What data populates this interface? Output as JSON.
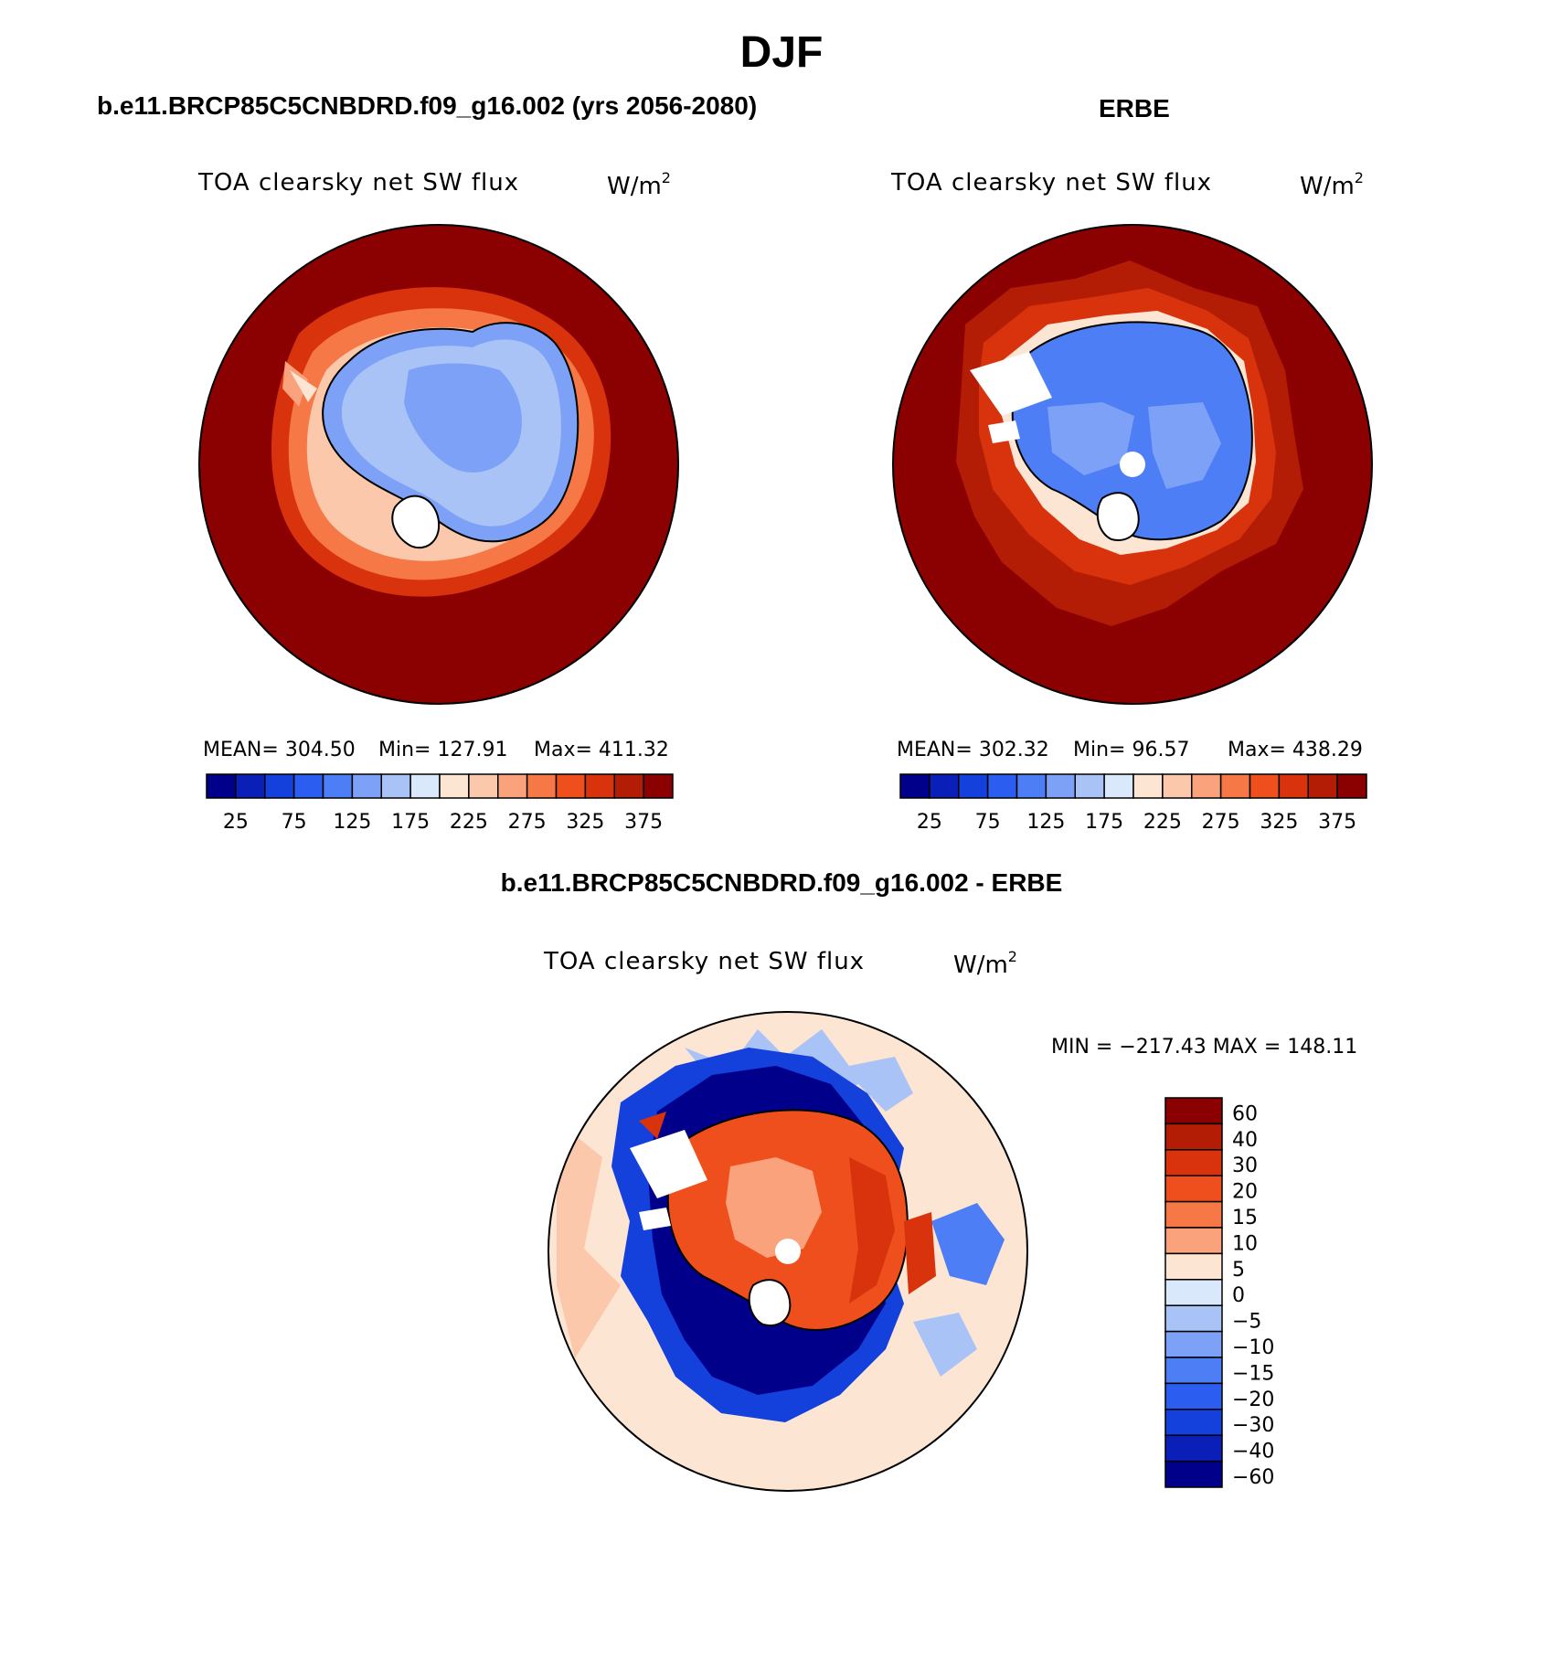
{
  "figure": {
    "title": "DJF",
    "left_title": "b.e11.BRCP85C5CNBDRD.f09_g16.002 (yrs 2056-2080)",
    "right_title": "ERBE",
    "diff_title": "b.e11.BRCP85C5CNBDRD.f09_g16.002 - ERBE"
  },
  "panels": {
    "left": {
      "var_label": "TOA clearsky net SW flux",
      "units_base": "W/m",
      "units_exp": "2",
      "mean": "MEAN= 304.50",
      "min": "Min= 127.91",
      "max": "Max= 411.32"
    },
    "right": {
      "var_label": "TOA clearsky net SW flux",
      "units_base": "W/m",
      "units_exp": "2",
      "mean": "MEAN= 302.32",
      "min": "Min=  96.57",
      "max": "Max= 438.29"
    },
    "diff": {
      "var_label": "TOA clearsky net SW flux",
      "units_base": "W/m",
      "units_exp": "2",
      "minmax": "MIN = −217.43 MAX = 148.11"
    }
  },
  "colorbars": {
    "abs": {
      "colors": [
        "#00008b",
        "#0a1fb8",
        "#1440dc",
        "#2b5ef0",
        "#4d7ef5",
        "#7ca1f7",
        "#a9c3f7",
        "#d9e8fa",
        "#fde5d4",
        "#fcc8ab",
        "#f9a27c",
        "#f57846",
        "#ee4f1c",
        "#d8330c",
        "#b41d05",
        "#8b0000"
      ],
      "tick_labels": [
        "25",
        "75",
        "125",
        "175",
        "225",
        "275",
        "325",
        "375"
      ]
    },
    "diff": {
      "colors": [
        "#8b0000",
        "#b41d05",
        "#d8330c",
        "#ee4f1c",
        "#f57846",
        "#f9a27c",
        "#fde5d4",
        "#d9e8fa",
        "#a9c3f7",
        "#7ca1f7",
        "#4d7ef5",
        "#2b5ef0",
        "#1440dc",
        "#0a1fb8",
        "#00008b"
      ],
      "tick_labels": [
        "60",
        "40",
        "30",
        "20",
        "15",
        "10",
        "5",
        "0",
        "−5",
        "−10",
        "−15",
        "−20",
        "−30",
        "−40",
        "−60"
      ]
    }
  }
}
